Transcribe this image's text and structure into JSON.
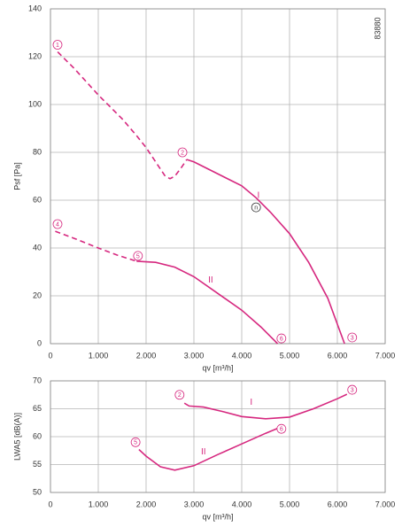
{
  "chart_data": [
    {
      "type": "line",
      "note": "83880",
      "y_label": "Psf [Pa]",
      "x_label": "qv [m³/h]",
      "xlim": [
        0,
        7000
      ],
      "ylim": [
        0,
        140
      ],
      "xticks": [
        0,
        {
          "value": 1000,
          "label": "1.000"
        },
        {
          "value": 2000,
          "label": "2.000"
        },
        {
          "value": 3000,
          "label": "3.000"
        },
        {
          "value": 4000,
          "label": "4.000"
        },
        {
          "value": 5000,
          "label": "5.000"
        },
        {
          "value": 6000,
          "label": "6.000"
        },
        {
          "value": 7000,
          "label": "7.000"
        }
      ],
      "yticks": [
        0,
        20,
        40,
        60,
        80,
        100,
        120,
        140
      ],
      "grid": true,
      "series": [
        {
          "name": "I",
          "color": "#d6287f",
          "x": [
            2850,
            3000,
            3300,
            3600,
            4000,
            4300,
            4600,
            5000,
            5400,
            5800,
            6150
          ],
          "values": [
            77,
            76,
            73,
            70,
            66,
            61,
            55,
            46,
            34,
            19,
            0
          ],
          "dashed": {
            "x": [
              150,
              500,
              1000,
              1500,
              1800,
              2000,
              2200,
              2400,
              2500,
              2600,
              2750,
              2850
            ],
            "values": [
              122,
              115,
              104,
              94,
              87,
              82,
              76,
              70,
              69,
              70,
              74,
              77
            ]
          }
        },
        {
          "name": "II",
          "color": "#d6287f",
          "x": [
            1800,
            2200,
            2600,
            3000,
            3500,
            4000,
            4400,
            4750
          ],
          "values": [
            34.5,
            34,
            32,
            28,
            21,
            14,
            7,
            0
          ],
          "dashed": {
            "x": [
              100,
              500,
              1000,
              1400,
              1800
            ],
            "values": [
              47,
              44,
              40,
              37,
              34.5
            ]
          }
        }
      ],
      "annotations": [
        {
          "text": "1",
          "x": 148,
          "y": 125,
          "circled": true
        },
        {
          "text": "2",
          "x": 2760,
          "y": 80,
          "circled": true
        },
        {
          "text": "3",
          "x": 6310,
          "y": 2.6,
          "circled": true
        },
        {
          "text": "4",
          "x": 148,
          "y": 50,
          "circled": true
        },
        {
          "text": "5",
          "x": 1830,
          "y": 36.7,
          "circled": true
        },
        {
          "text": "6",
          "x": 4830,
          "y": 2.2,
          "circled": true
        },
        {
          "text": "n",
          "x": 4300,
          "y": 57,
          "circled": true
        },
        {
          "text": "I",
          "x": 4350,
          "y": 62,
          "circled": false
        },
        {
          "text": "II",
          "x": 3350,
          "y": 26.7,
          "circled": false
        }
      ]
    },
    {
      "type": "line",
      "y_label": "LWA5 [dB(A)]",
      "x_label": "qv [m³/h]",
      "xlim": [
        0,
        7000
      ],
      "ylim": [
        50,
        70
      ],
      "xticks": [
        0,
        {
          "value": 1000,
          "label": "1.000"
        },
        {
          "value": 2000,
          "label": "2.000"
        },
        {
          "value": 3000,
          "label": "3.000"
        },
        {
          "value": 4000,
          "label": "4.000"
        },
        {
          "value": 5000,
          "label": "5.000"
        },
        {
          "value": 6000,
          "label": "6.000"
        },
        {
          "value": 7000,
          "label": "7.000"
        }
      ],
      "yticks": [
        50,
        55,
        60,
        65,
        70
      ],
      "grid": true,
      "series": [
        {
          "name": "I",
          "color": "#d6287f",
          "x": [
            2800,
            2900,
            3200,
            3600,
            4000,
            4500,
            5000,
            5500,
            6000,
            6200
          ],
          "values": [
            66,
            65.5,
            65.3,
            64.5,
            63.6,
            63.2,
            63.5,
            65,
            66.8,
            67.6
          ]
        },
        {
          "name": "II",
          "color": "#d6287f",
          "x": [
            1850,
            2000,
            2300,
            2600,
            3000,
            3500,
            4000,
            4500,
            4750
          ],
          "values": [
            57.7,
            56.5,
            54.6,
            54,
            54.8,
            56.8,
            58.7,
            60.6,
            61.5
          ]
        }
      ],
      "annotations": [
        {
          "text": "2",
          "x": 2700,
          "y": 67.5,
          "circled": true
        },
        {
          "text": "3",
          "x": 6310,
          "y": 68.4,
          "circled": true
        },
        {
          "text": "5",
          "x": 1780,
          "y": 59,
          "circled": true
        },
        {
          "text": "6",
          "x": 4830,
          "y": 61.4,
          "circled": true
        },
        {
          "text": "I",
          "x": 4200,
          "y": 66.2,
          "circled": false
        },
        {
          "text": "II",
          "x": 3200,
          "y": 57.3,
          "circled": false
        }
      ]
    }
  ]
}
